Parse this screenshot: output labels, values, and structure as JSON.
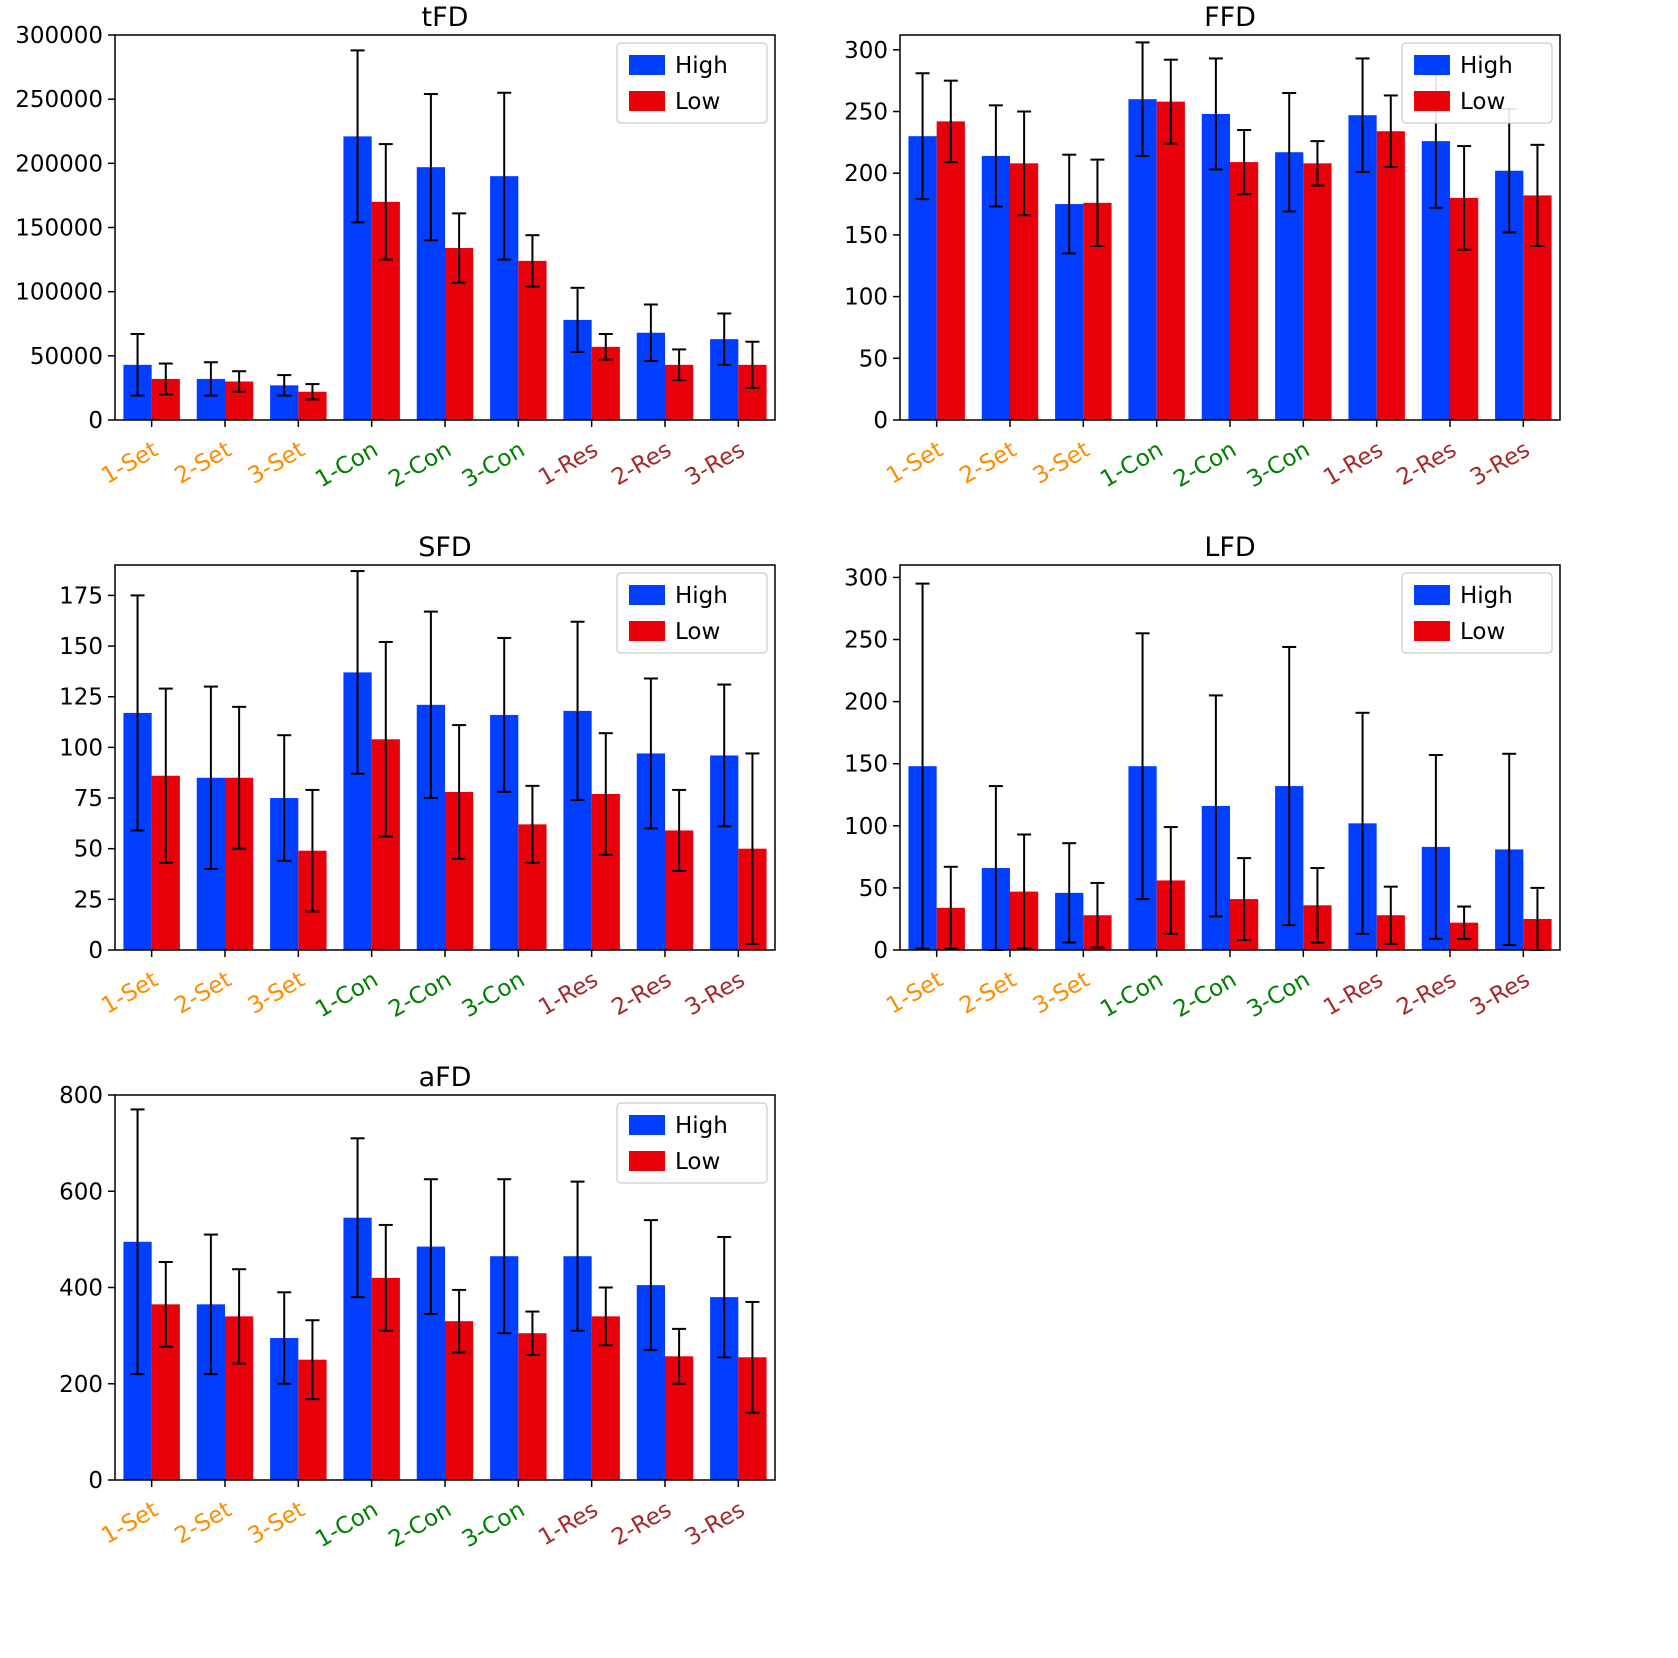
{
  "figure": {
    "background": "#ffffff",
    "colors": {
      "high": "#023EFF",
      "low": "#E8000B",
      "error_bar": "#000000",
      "set_label": "#FF8C00",
      "con_label": "#008000",
      "res_label": "#A52A2A"
    },
    "legend": {
      "labels": [
        "High",
        "Low"
      ],
      "position": "upper right"
    }
  },
  "chart_data": [
    {
      "type": "bar",
      "title": "tFD",
      "categories": [
        "1-Set",
        "2-Set",
        "3-Set",
        "1-Con",
        "2-Con",
        "3-Con",
        "1-Res",
        "2-Res",
        "3-Res"
      ],
      "category_colors": [
        "#FF8C00",
        "#FF8C00",
        "#FF8C00",
        "#008000",
        "#008000",
        "#008000",
        "#A52A2A",
        "#A52A2A",
        "#A52A2A"
      ],
      "ylim": [
        0,
        300000
      ],
      "yticks": [
        0,
        50000,
        100000,
        150000,
        200000,
        250000,
        300000
      ],
      "grid": false,
      "legend_position": "upper right",
      "series": [
        {
          "name": "High",
          "color": "#023EFF",
          "values": [
            43000,
            32000,
            27000,
            221000,
            197000,
            190000,
            78000,
            68000,
            63000
          ],
          "errors": [
            24000,
            13000,
            8000,
            67000,
            57000,
            65000,
            25000,
            22000,
            20000
          ]
        },
        {
          "name": "Low",
          "color": "#E8000B",
          "values": [
            32000,
            30000,
            22000,
            170000,
            134000,
            124000,
            57000,
            43000,
            43000
          ],
          "errors": [
            12000,
            8000,
            6000,
            45000,
            27000,
            20000,
            10000,
            12000,
            18000
          ]
        }
      ]
    },
    {
      "type": "bar",
      "title": "FFD",
      "categories": [
        "1-Set",
        "2-Set",
        "3-Set",
        "1-Con",
        "2-Con",
        "3-Con",
        "1-Res",
        "2-Res",
        "3-Res"
      ],
      "category_colors": [
        "#FF8C00",
        "#FF8C00",
        "#FF8C00",
        "#008000",
        "#008000",
        "#008000",
        "#A52A2A",
        "#A52A2A",
        "#A52A2A"
      ],
      "ylim": [
        0,
        312
      ],
      "yticks": [
        0,
        50,
        100,
        150,
        200,
        250,
        300
      ],
      "grid": false,
      "legend_position": "upper right",
      "series": [
        {
          "name": "High",
          "color": "#023EFF",
          "values": [
            230,
            214,
            175,
            260,
            248,
            217,
            247,
            226,
            202
          ],
          "errors": [
            51,
            41,
            40,
            46,
            45,
            48,
            46,
            54,
            50
          ]
        },
        {
          "name": "Low",
          "color": "#E8000B",
          "values": [
            242,
            208,
            176,
            258,
            209,
            208,
            234,
            180,
            182
          ],
          "errors": [
            33,
            42,
            35,
            34,
            26,
            18,
            29,
            42,
            41
          ]
        }
      ]
    },
    {
      "type": "bar",
      "title": "SFD",
      "categories": [
        "1-Set",
        "2-Set",
        "3-Set",
        "1-Con",
        "2-Con",
        "3-Con",
        "1-Res",
        "2-Res",
        "3-Res"
      ],
      "category_colors": [
        "#FF8C00",
        "#FF8C00",
        "#FF8C00",
        "#008000",
        "#008000",
        "#008000",
        "#A52A2A",
        "#A52A2A",
        "#A52A2A"
      ],
      "ylim": [
        0,
        190
      ],
      "yticks": [
        0,
        25,
        50,
        75,
        100,
        125,
        150,
        175
      ],
      "grid": false,
      "legend_position": "upper right",
      "series": [
        {
          "name": "High",
          "color": "#023EFF",
          "values": [
            117,
            85,
            75,
            137,
            121,
            116,
            118,
            97,
            96
          ],
          "errors": [
            58,
            45,
            31,
            50,
            46,
            38,
            44,
            37,
            35
          ]
        },
        {
          "name": "Low",
          "color": "#E8000B",
          "values": [
            86,
            85,
            49,
            104,
            78,
            62,
            77,
            59,
            50
          ],
          "errors": [
            43,
            35,
            30,
            48,
            33,
            19,
            30,
            20,
            47
          ]
        }
      ]
    },
    {
      "type": "bar",
      "title": "LFD",
      "categories": [
        "1-Set",
        "2-Set",
        "3-Set",
        "1-Con",
        "2-Con",
        "3-Con",
        "1-Res",
        "2-Res",
        "3-Res"
      ],
      "category_colors": [
        "#FF8C00",
        "#FF8C00",
        "#FF8C00",
        "#008000",
        "#008000",
        "#008000",
        "#A52A2A",
        "#A52A2A",
        "#A52A2A"
      ],
      "ylim": [
        0,
        310
      ],
      "yticks": [
        0,
        50,
        100,
        150,
        200,
        250,
        300
      ],
      "grid": false,
      "legend_position": "upper right",
      "series": [
        {
          "name": "High",
          "color": "#023EFF",
          "values": [
            148,
            66,
            46,
            148,
            116,
            132,
            102,
            83,
            81
          ],
          "errors": [
            147,
            66,
            40,
            107,
            89,
            112,
            89,
            74,
            77
          ]
        },
        {
          "name": "Low",
          "color": "#E8000B",
          "values": [
            34,
            47,
            28,
            56,
            41,
            36,
            28,
            22,
            25
          ],
          "errors": [
            33,
            46,
            26,
            43,
            33,
            30,
            23,
            13,
            25
          ]
        }
      ]
    },
    {
      "type": "bar",
      "title": "aFD",
      "categories": [
        "1-Set",
        "2-Set",
        "3-Set",
        "1-Con",
        "2-Con",
        "3-Con",
        "1-Res",
        "2-Res",
        "3-Res"
      ],
      "category_colors": [
        "#FF8C00",
        "#FF8C00",
        "#FF8C00",
        "#008000",
        "#008000",
        "#008000",
        "#A52A2A",
        "#A52A2A",
        "#A52A2A"
      ],
      "ylim": [
        0,
        800
      ],
      "yticks": [
        0,
        200,
        400,
        600,
        800
      ],
      "grid": false,
      "legend_position": "upper right",
      "series": [
        {
          "name": "High",
          "color": "#023EFF",
          "values": [
            495,
            365,
            295,
            545,
            485,
            465,
            465,
            405,
            380
          ],
          "errors": [
            275,
            145,
            95,
            165,
            140,
            160,
            155,
            135,
            125
          ]
        },
        {
          "name": "Low",
          "color": "#E8000B",
          "values": [
            365,
            340,
            250,
            420,
            330,
            305,
            340,
            257,
            255
          ],
          "errors": [
            88,
            98,
            82,
            110,
            65,
            45,
            60,
            57,
            115
          ]
        }
      ]
    }
  ]
}
